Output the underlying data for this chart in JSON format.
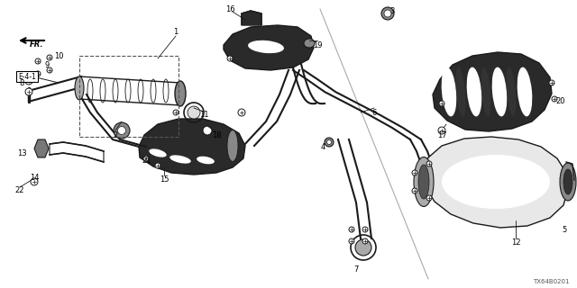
{
  "bg_color": "#ffffff",
  "diagram_id": "TX64B0201",
  "line_color": "#1a1a1a",
  "dark_fill": "#2a2a2a",
  "gray_fill": "#888888",
  "light_gray": "#cccccc"
}
